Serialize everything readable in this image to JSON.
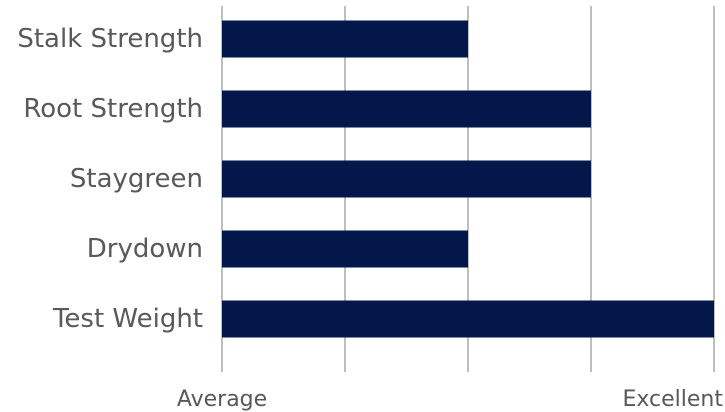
{
  "chart_data": {
    "type": "bar",
    "orientation": "horizontal",
    "categories": [
      "Stalk Strength",
      "Root Strength",
      "Staygreen",
      "Drydown",
      "Test Weight"
    ],
    "values": [
      2,
      3,
      3,
      2,
      4
    ],
    "xlim": [
      0,
      4
    ],
    "xticks": [
      0,
      1,
      2,
      3,
      4
    ],
    "xtick_labels": [
      "Average",
      "",
      "",
      "",
      "Excellent"
    ],
    "grid": true,
    "bar_color": "#04174a",
    "grid_color": "#bfbfbf",
    "text_color": "#595959",
    "legend": "none"
  }
}
